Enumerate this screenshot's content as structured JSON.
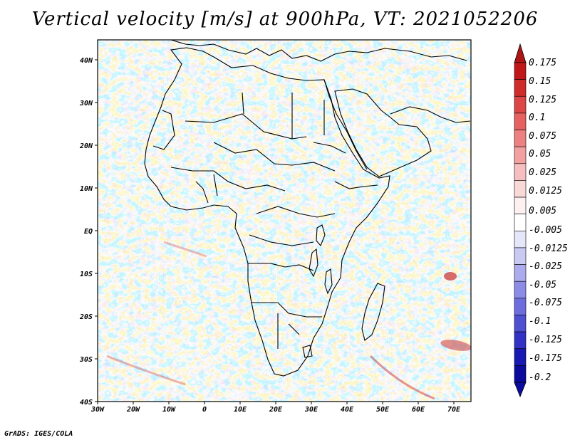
{
  "title": "Vertical velocity [m/s] at 900hPa, VT: 2021052206",
  "footer": "GrADS: IGES/COLA",
  "map": {
    "region": "Africa",
    "lon_labels": [
      "30W",
      "20W",
      "10W",
      "0",
      "10E",
      "20E",
      "30E",
      "40E",
      "50E",
      "60E",
      "70E"
    ],
    "lat_labels": [
      "40N",
      "30N",
      "20N",
      "10N",
      "EQ",
      "10S",
      "20S",
      "30S",
      "40S"
    ]
  },
  "colorbar": {
    "labels": [
      "0.175",
      "0.15",
      "0.125",
      "0.1",
      "0.075",
      "0.05",
      "0.025",
      "0.0125",
      "0.005",
      "-0.005",
      "-0.0125",
      "-0.025",
      "-0.05",
      "-0.075",
      "-0.1",
      "-0.125",
      "-0.175",
      "-0.2"
    ],
    "colors": [
      "#c01818",
      "#cf2c2c",
      "#dc4646",
      "#e66262",
      "#ed8080",
      "#f2a0a0",
      "#f6bebe",
      "#f9d8d8",
      "#fdf0f0",
      "#ffffff",
      "#e6e6fb",
      "#c9c9f4",
      "#ababee",
      "#8c8ce6",
      "#6d6ddd",
      "#4f4fd2",
      "#3232c4",
      "#1818b2",
      "#0a0a9e"
    ],
    "top_color": "#b01515",
    "bottom_color": "#0c0ca0"
  }
}
